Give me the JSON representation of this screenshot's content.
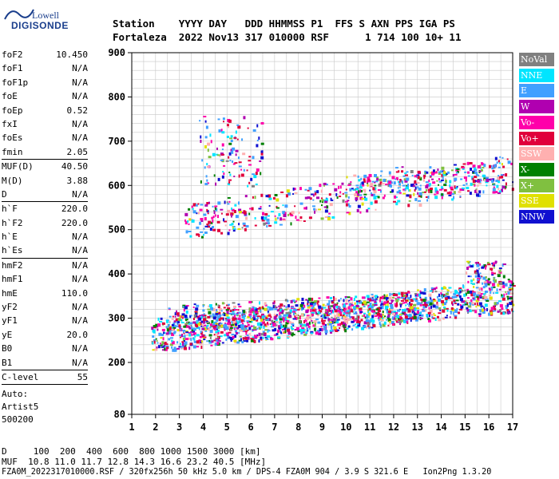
{
  "logo": {
    "line1": "Lowell",
    "line2": "DIGISONDE"
  },
  "header": {
    "line1": "Station    YYYY DAY   DDD HHMMSS P1  FFS S AXN PPS IGA PS",
    "line2": "Fortaleza  2022 Nov13 317 010000 RSF      1 714 100 10+ 11"
  },
  "params_groups": [
    [
      {
        "label": "foF2",
        "value": "10.450"
      },
      {
        "label": "foF1",
        "value": "N/A"
      },
      {
        "label": "foF1p",
        "value": "N/A"
      },
      {
        "label": "foE",
        "value": "N/A"
      },
      {
        "label": "foEp",
        "value": "0.52"
      },
      {
        "label": "fxI",
        "value": "N/A"
      },
      {
        "label": "foEs",
        "value": "N/A"
      },
      {
        "label": "fmin",
        "value": "2.05"
      }
    ],
    [
      {
        "label": "MUF(D)",
        "value": "40.50"
      },
      {
        "label": "M(D)",
        "value": "3.88"
      },
      {
        "label": "D",
        "value": "N/A"
      }
    ],
    [
      {
        "label": "h`F",
        "value": "220.0"
      },
      {
        "label": "h`F2",
        "value": "220.0"
      },
      {
        "label": "h`E",
        "value": "N/A"
      },
      {
        "label": "h`Es",
        "value": "N/A"
      }
    ],
    [
      {
        "label": "hmF2",
        "value": "N/A"
      },
      {
        "label": "hmF1",
        "value": "N/A"
      },
      {
        "label": "hmE",
        "value": "110.0"
      },
      {
        "label": "yF2",
        "value": "N/A"
      },
      {
        "label": "yF1",
        "value": "N/A"
      },
      {
        "label": "yE",
        "value": "20.0"
      },
      {
        "label": "B0",
        "value": "N/A"
      },
      {
        "label": "B1",
        "value": "N/A"
      }
    ],
    [
      {
        "label": "C-level",
        "value": "55"
      }
    ]
  ],
  "auto": {
    "line1": "Auto:",
    "line2": "Artist5",
    "line3": "500200"
  },
  "legend": [
    {
      "label": "NoVal",
      "color": "#808080"
    },
    {
      "label": "NNE",
      "color": "#00e5ff"
    },
    {
      "label": "E",
      "color": "#40a0ff"
    },
    {
      "label": "W",
      "color": "#b000b0"
    },
    {
      "label": "Vo-",
      "color": "#ff00aa"
    },
    {
      "label": "Vo+",
      "color": "#e0003a"
    },
    {
      "label": "SSW",
      "color": "#ffb0b0"
    },
    {
      "label": "X-",
      "color": "#008000"
    },
    {
      "label": "X+",
      "color": "#80c040"
    },
    {
      "label": "SSE",
      "color": "#e0e000"
    },
    {
      "label": "NNW",
      "color": "#1010d0"
    }
  ],
  "axes": {
    "x_ticks": [
      "1",
      "2",
      "3",
      "4",
      "5",
      "6",
      "7",
      "8",
      "9",
      "10",
      "11",
      "12",
      "13",
      "14",
      "15",
      "16",
      "17"
    ],
    "y_ticks": [
      "80",
      "200",
      "300",
      "400",
      "500",
      "600",
      "700",
      "800",
      "900"
    ],
    "x_range": [
      1,
      17
    ],
    "y_range": [
      80,
      900
    ]
  },
  "bottom": {
    "d_row": "D     100  200  400  600  800 1000 1500 3000 [km]",
    "muf_row": "MUF  10.8 11.0 11.7 12.8 14.3 16.6 23.2 40.5 [MHz]",
    "info_row": "FZA0M_2022317010000.RSF / 320fx256h 50 kHz 5.0 km / DPS-4 FZA0M 904 / 3.9 S 321.6 E   Ion2Png 1.3.20"
  }
}
